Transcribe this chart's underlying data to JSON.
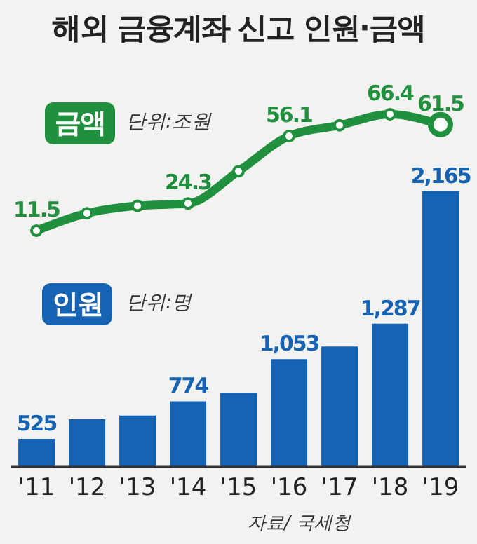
{
  "chart_data": {
    "type": "bar",
    "title": "해외 금융계좌 신고 인원·금액",
    "categories": [
      "'11",
      "'12",
      "'13",
      "'14",
      "'15",
      "'16",
      "'17",
      "'18",
      "'19"
    ],
    "series": [
      {
        "name": "인원",
        "axis": "y",
        "color": "#1763b3",
        "values": [
          525,
          655,
          680,
          774,
          831,
          1053,
          1137,
          1287,
          2165
        ],
        "value_labels": [
          "525",
          null,
          null,
          "774",
          null,
          "1,053",
          null,
          "1,287",
          "2,165"
        ]
      },
      {
        "name": "금액",
        "type": "line",
        "axis": "y2",
        "color": "#20903f",
        "values": [
          11.5,
          19.7,
          23.2,
          24.3,
          39.5,
          56.1,
          61.2,
          66.4,
          61.5
        ],
        "value_labels": [
          "11.5",
          null,
          null,
          "24.3",
          null,
          "56.1",
          null,
          "66.4",
          "61.5"
        ]
      }
    ],
    "ylim": [
      340,
      2780
    ],
    "y2lim": [
      -100,
      74
    ],
    "tick_labels": "x",
    "marker": "circle",
    "annotations": [
      "단위:조원",
      "단위:명",
      "자료/ 국세청"
    ]
  }
}
